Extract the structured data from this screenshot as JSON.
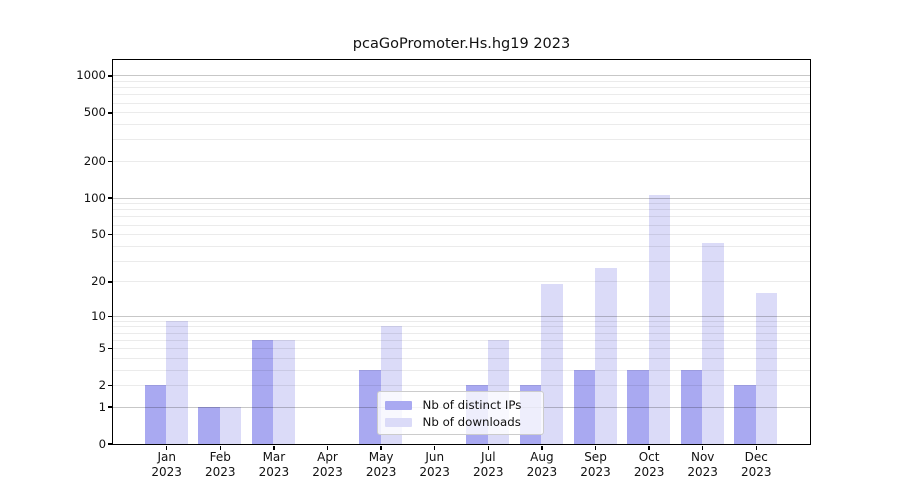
{
  "title": "pcaGoPromoter.Hs.hg19 2023",
  "legend": {
    "items": [
      {
        "label": "Nb of distinct IPs"
      },
      {
        "label": "Nb of downloads"
      }
    ]
  },
  "colors": {
    "distinct_ips_bar": "#a9a9f1",
    "downloads_bar": "#dbdbf8",
    "grid_major": "rgba(0,0,0,0.22)",
    "grid_minor": "rgba(0,0,0,0.08)",
    "axis_line": "#000000",
    "text": "#111111",
    "legend_border": "#cccccc",
    "legend_bg": "rgba(255,255,255,0.8)"
  },
  "chart_data": {
    "type": "bar",
    "title": "pcaGoPromoter.Hs.hg19 2023",
    "categories": [
      "Jan 2023",
      "Feb 2023",
      "Mar 2023",
      "Apr 2023",
      "May 2023",
      "Jun 2023",
      "Jul 2023",
      "Aug 2023",
      "Sep 2023",
      "Oct 2023",
      "Nov 2023",
      "Dec 2023"
    ],
    "series": [
      {
        "name": "Nb of distinct IPs",
        "values": [
          2,
          1,
          6,
          0,
          3,
          0,
          2,
          2,
          3,
          3,
          3,
          2
        ]
      },
      {
        "name": "Nb of downloads",
        "values": [
          9,
          1,
          6,
          0,
          8,
          0,
          6,
          19,
          26,
          105,
          42,
          16
        ]
      }
    ],
    "y_ticks": [
      0,
      1,
      2,
      5,
      10,
      20,
      50,
      100,
      200,
      500,
      1000
    ],
    "ylim": [
      0,
      1350
    ],
    "y_scale": "log10(1+v)",
    "grid": "major-at-powers-of-10-plus-log-minors",
    "legend_position": "lower-center-inside"
  }
}
